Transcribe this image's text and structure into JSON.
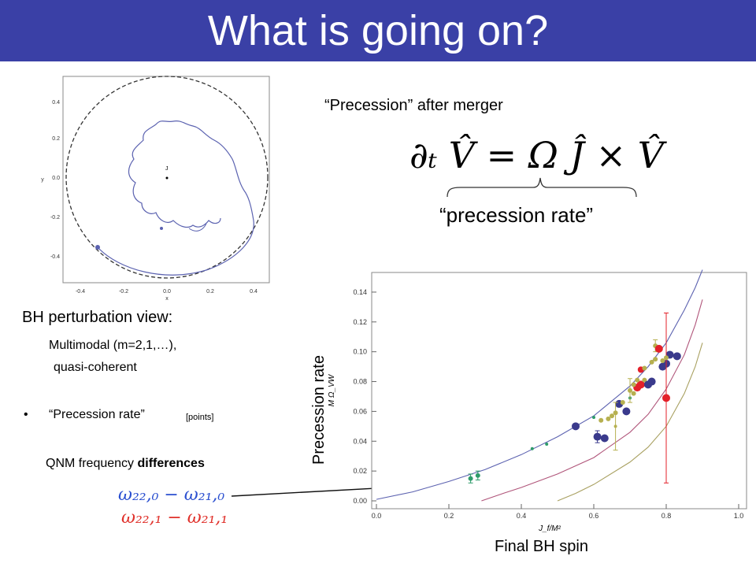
{
  "slide": {
    "title": "What is going on?",
    "precession_after_merger": "“Precession” after merger",
    "equation": "∂ₜ V̂ = Ω Ĵ × V̂",
    "precession_rate_label": "“precession rate”",
    "bh_view": "BH perturbation view:",
    "multimodal": "Multimodal (m=2,1,…),",
    "quasi_coherent": "quasi-coherent",
    "bullet": "•",
    "precession_rate_bullet": "“Precession rate”",
    "points_note": "[points]",
    "qnm_prefix": "QNM frequency ",
    "qnm_bold": "differences",
    "omega_line1": "ω₂₂,₀ − ω₂₁,₀",
    "omega_line2": "ω₂₂,₁ − ω₂₁,₁",
    "y_axis_caption": "Precession rate",
    "x_axis_caption": "Final BH spin"
  },
  "colors": {
    "title_bar": "#3a40a6",
    "omega_blue": "#2a4fd0",
    "omega_red": "#e0302a"
  },
  "orbit_plot": {
    "xlabel": "x",
    "ylabel": "y",
    "center_label": "J",
    "xticks": [
      "-0.4",
      "-0.2",
      "0.0",
      "0.2",
      "0.4"
    ],
    "yticks": [
      "0.4",
      "0.2",
      "0.0",
      "-0.2",
      "-0.4"
    ]
  },
  "chart_data": {
    "type": "scatter",
    "xlabel": "J_f/M²",
    "ylabel": "M Ω_VW",
    "xlim": [
      0.0,
      1.0
    ],
    "ylim": [
      0.0,
      0.15
    ],
    "xticks": [
      "0.0",
      "0.2",
      "0.4",
      "0.6",
      "0.8",
      "1.0"
    ],
    "yticks": [
      "0.00",
      "0.02",
      "0.04",
      "0.06",
      "0.08",
      "0.10",
      "0.12",
      "0.14"
    ],
    "curves": [
      {
        "color": "#5c62b0",
        "x": [
          0.0,
          0.1,
          0.2,
          0.3,
          0.4,
          0.5,
          0.6,
          0.7,
          0.75,
          0.8,
          0.85,
          0.88,
          0.9
        ],
        "y": [
          0.001,
          0.006,
          0.013,
          0.021,
          0.031,
          0.043,
          0.057,
          0.077,
          0.09,
          0.106,
          0.128,
          0.143,
          0.155
        ]
      },
      {
        "color": "#b0557a",
        "x": [
          0.29,
          0.35,
          0.4,
          0.5,
          0.6,
          0.7,
          0.75,
          0.8,
          0.85,
          0.88,
          0.9
        ],
        "y": [
          0.0,
          0.005,
          0.009,
          0.018,
          0.029,
          0.046,
          0.058,
          0.075,
          0.098,
          0.118,
          0.135
        ]
      },
      {
        "color": "#a8a060",
        "x": [
          0.5,
          0.55,
          0.6,
          0.7,
          0.75,
          0.8,
          0.85,
          0.88,
          0.9
        ],
        "y": [
          0.0,
          0.005,
          0.011,
          0.026,
          0.036,
          0.05,
          0.072,
          0.09,
          0.106
        ]
      }
    ],
    "points": [
      {
        "x": 0.26,
        "y": 0.015,
        "c": "#2e9c6a",
        "r": 3,
        "err": 0.003
      },
      {
        "x": 0.28,
        "y": 0.017,
        "c": "#2e9c6a",
        "r": 3,
        "err": 0.003
      },
      {
        "x": 0.43,
        "y": 0.035,
        "c": "#2e9c6a",
        "r": 2
      },
      {
        "x": 0.47,
        "y": 0.038,
        "c": "#2e9c6a",
        "r": 2
      },
      {
        "x": 0.55,
        "y": 0.05,
        "c": "#3a3a8c",
        "r": 5
      },
      {
        "x": 0.6,
        "y": 0.056,
        "c": "#2e9c6a",
        "r": 2
      },
      {
        "x": 0.61,
        "y": 0.043,
        "c": "#3a3a8c",
        "r": 5,
        "err": 0.004
      },
      {
        "x": 0.63,
        "y": 0.042,
        "c": "#3a3a8c",
        "r": 5
      },
      {
        "x": 0.62,
        "y": 0.054,
        "c": "#b6b050",
        "r": 3
      },
      {
        "x": 0.64,
        "y": 0.055,
        "c": "#b6b050",
        "r": 3
      },
      {
        "x": 0.65,
        "y": 0.057,
        "c": "#b6b050",
        "r": 3
      },
      {
        "x": 0.66,
        "y": 0.059,
        "c": "#b6b050",
        "r": 3
      },
      {
        "x": 0.67,
        "y": 0.065,
        "c": "#3a3a8c",
        "r": 5
      },
      {
        "x": 0.68,
        "y": 0.066,
        "c": "#b6b050",
        "r": 3
      },
      {
        "x": 0.66,
        "y": 0.05,
        "c": "#b6b050",
        "r": 2,
        "err": 0.016
      },
      {
        "x": 0.69,
        "y": 0.06,
        "c": "#3a3a8c",
        "r": 5
      },
      {
        "x": 0.7,
        "y": 0.069,
        "c": "#2e9c6a",
        "r": 2
      },
      {
        "x": 0.71,
        "y": 0.072,
        "c": "#b6b050",
        "r": 3
      },
      {
        "x": 0.7,
        "y": 0.074,
        "c": "#b6b050",
        "r": 3,
        "err": 0.008
      },
      {
        "x": 0.72,
        "y": 0.076,
        "c": "#e3202a",
        "r": 5
      },
      {
        "x": 0.73,
        "y": 0.078,
        "c": "#e3202a",
        "r": 5
      },
      {
        "x": 0.74,
        "y": 0.081,
        "c": "#b6b050",
        "r": 3
      },
      {
        "x": 0.73,
        "y": 0.088,
        "c": "#e3202a",
        "r": 4
      },
      {
        "x": 0.74,
        "y": 0.089,
        "c": "#b6b050",
        "r": 3
      },
      {
        "x": 0.72,
        "y": 0.081,
        "c": "#b6b050",
        "r": 3
      },
      {
        "x": 0.71,
        "y": 0.078,
        "c": "#b6b050",
        "r": 3
      },
      {
        "x": 0.75,
        "y": 0.078,
        "c": "#3a3a8c",
        "r": 5
      },
      {
        "x": 0.76,
        "y": 0.08,
        "c": "#3a3a8c",
        "r": 5
      },
      {
        "x": 0.76,
        "y": 0.093,
        "c": "#b6b050",
        "r": 3
      },
      {
        "x": 0.77,
        "y": 0.095,
        "c": "#b6b050",
        "r": 3
      },
      {
        "x": 0.77,
        "y": 0.104,
        "c": "#b6b050",
        "r": 3,
        "err": 0.004
      },
      {
        "x": 0.78,
        "y": 0.102,
        "c": "#e3202a",
        "r": 5
      },
      {
        "x": 0.79,
        "y": 0.09,
        "c": "#3a3a8c",
        "r": 5
      },
      {
        "x": 0.8,
        "y": 0.092,
        "c": "#3a3a8c",
        "r": 5
      },
      {
        "x": 0.81,
        "y": 0.098,
        "c": "#3a3a8c",
        "r": 5
      },
      {
        "x": 0.83,
        "y": 0.097,
        "c": "#3a3a8c",
        "r": 5
      },
      {
        "x": 0.8,
        "y": 0.069,
        "c": "#e3202a",
        "r": 5,
        "err": 0.057
      },
      {
        "x": 0.79,
        "y": 0.094,
        "c": "#b6b050",
        "r": 3
      },
      {
        "x": 0.8,
        "y": 0.096,
        "c": "#b6b050",
        "r": 3
      }
    ]
  }
}
